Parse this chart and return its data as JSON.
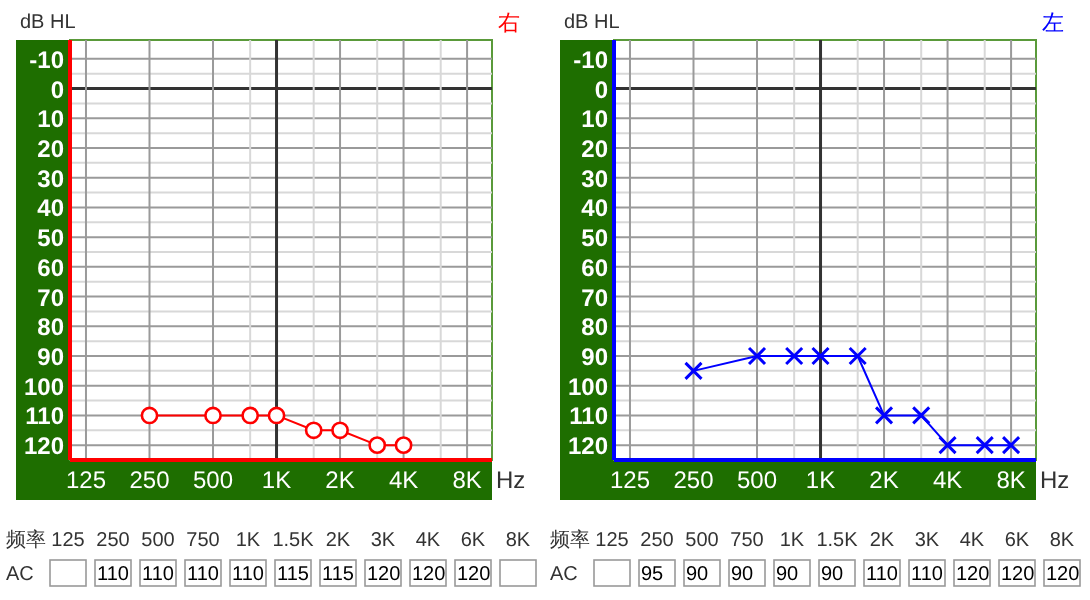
{
  "chart_data": [
    {
      "type": "line",
      "title": "右",
      "ylabel": "dB HL",
      "xlabel": "Hz",
      "log": "x",
      "grid": true,
      "marker": "circle",
      "line_style": "solid",
      "x": [
        250,
        500,
        750,
        1000,
        1500,
        2000,
        3000,
        4000
      ],
      "series": [
        {
          "color": "#ff0000",
          "values": [
            110,
            110,
            110,
            110,
            115,
            115,
            120,
            120
          ]
        }
      ],
      "xlim": [
        105,
        10500
      ],
      "ylim": [
        125,
        -15
      ],
      "xticks": [
        125,
        250,
        500,
        {
          "value": 750,
          "label": null
        },
        {
          "value": 1000,
          "label": "1K"
        },
        {
          "value": 1500,
          "label": null
        },
        {
          "value": 2000,
          "label": "2K"
        },
        {
          "value": 3000,
          "label": null
        },
        {
          "value": 4000,
          "label": "4K"
        },
        {
          "value": 6000,
          "label": null
        },
        {
          "value": 8000,
          "label": "8K"
        }
      ],
      "yticks": [
        -10,
        {
          "value": -5,
          "label": null
        },
        0,
        {
          "value": 5,
          "label": null
        },
        10,
        {
          "value": 15,
          "label": null
        },
        20,
        {
          "value": 25,
          "label": null
        },
        30,
        {
          "value": 35,
          "label": null
        },
        40,
        {
          "value": 45,
          "label": null
        },
        50,
        {
          "value": 55,
          "label": null
        },
        60,
        {
          "value": 65,
          "label": null
        },
        70,
        {
          "value": 75,
          "label": null
        },
        80,
        {
          "value": 85,
          "label": null
        },
        90,
        {
          "value": 95,
          "label": null
        },
        100,
        {
          "value": 105,
          "label": null
        },
        110,
        {
          "value": 115,
          "label": null
        },
        120
      ],
      "annotations": [
        "频率",
        "125",
        "250",
        "500",
        "750",
        "1K",
        "1.5K",
        "2K",
        "3K",
        "4K",
        "6K",
        "8K",
        "AC",
        "110",
        "110",
        "110",
        "110",
        "115",
        "115",
        "120",
        "120",
        "120"
      ]
    },
    {
      "type": "line",
      "title": "左",
      "ylabel": "dB HL",
      "xlabel": "Hz",
      "log": "x",
      "grid": true,
      "marker": "cross",
      "line_style": "solid",
      "x": [
        250,
        500,
        750,
        1000,
        1500,
        2000,
        3000,
        4000,
        6000,
        8000
      ],
      "series": [
        {
          "color": "#0000ff",
          "values": [
            95,
            90,
            90,
            90,
            90,
            110,
            110,
            120,
            120,
            120
          ]
        }
      ],
      "xlim": [
        105,
        10500
      ],
      "ylim": [
        125,
        -15
      ],
      "xticks": [
        125,
        250,
        500,
        {
          "value": 750,
          "label": null
        },
        {
          "value": 1000,
          "label": "1K"
        },
        {
          "value": 1500,
          "label": null
        },
        {
          "value": 2000,
          "label": "2K"
        },
        {
          "value": 3000,
          "label": null
        },
        {
          "value": 4000,
          "label": "4K"
        },
        {
          "value": 6000,
          "label": null
        },
        {
          "value": 8000,
          "label": "8K"
        }
      ],
      "yticks": [
        -10,
        {
          "value": -5,
          "label": null
        },
        0,
        {
          "value": 5,
          "label": null
        },
        10,
        {
          "value": 15,
          "label": null
        },
        20,
        {
          "value": 25,
          "label": null
        },
        30,
        {
          "value": 35,
          "label": null
        },
        40,
        {
          "value": 45,
          "label": null
        },
        50,
        {
          "value": 55,
          "label": null
        },
        60,
        {
          "value": 65,
          "label": null
        },
        70,
        {
          "value": 75,
          "label": null
        },
        80,
        {
          "value": 85,
          "label": null
        },
        90,
        {
          "value": 95,
          "label": null
        },
        100,
        {
          "value": 105,
          "label": null
        },
        110,
        {
          "value": 115,
          "label": null
        },
        120
      ],
      "annotations": [
        "频率",
        "125",
        "250",
        "500",
        "750",
        "1K",
        "1.5K",
        "2K",
        "3K",
        "4K",
        "6K",
        "8K",
        "AC",
        "95",
        "90",
        "90",
        "90",
        "90",
        "110",
        "110",
        "120",
        "120",
        "120"
      ]
    }
  ]
}
